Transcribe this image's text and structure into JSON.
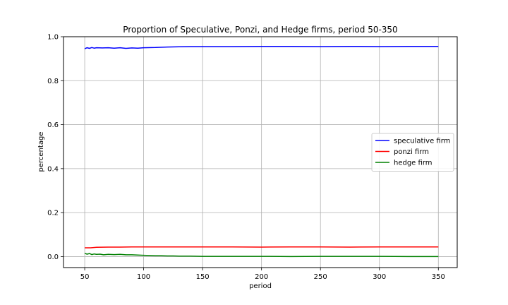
{
  "chart_data": {
    "type": "line",
    "title": "Proportion of Speculative, Ponzi, and Hedge firms, period 50-350",
    "xlabel": "period",
    "ylabel": "percentage",
    "xlim": [
      32,
      366
    ],
    "ylim": [
      -0.05,
      1.0
    ],
    "xticks": [
      50,
      100,
      150,
      200,
      250,
      300,
      350
    ],
    "yticks": [
      0.0,
      0.2,
      0.4,
      0.6,
      0.8,
      1.0
    ],
    "xtick_labels": [
      "50",
      "100",
      "150",
      "200",
      "250",
      "300",
      "350"
    ],
    "ytick_labels": [
      "0.0",
      "0.2",
      "0.4",
      "0.6",
      "0.8",
      "1.0"
    ],
    "grid": true,
    "legend_position": "center-right",
    "series": [
      {
        "name": "speculative firm",
        "color": "#0000ff",
        "x": [
          50,
          52,
          54,
          56,
          58,
          60,
          65,
          70,
          75,
          80,
          85,
          90,
          95,
          100,
          110,
          120,
          130,
          140,
          150,
          175,
          200,
          225,
          250,
          275,
          300,
          325,
          350
        ],
        "y": [
          0.945,
          0.95,
          0.947,
          0.951,
          0.948,
          0.95,
          0.949,
          0.95,
          0.948,
          0.95,
          0.947,
          0.949,
          0.948,
          0.95,
          0.951,
          0.953,
          0.954,
          0.955,
          0.955,
          0.955,
          0.956,
          0.956,
          0.955,
          0.956,
          0.955,
          0.956,
          0.956
        ]
      },
      {
        "name": "ponzi firm",
        "color": "#ff0000",
        "x": [
          50,
          55,
          60,
          70,
          80,
          90,
          100,
          125,
          150,
          175,
          200,
          225,
          250,
          275,
          300,
          325,
          350
        ],
        "y": [
          0.04,
          0.04,
          0.042,
          0.043,
          0.043,
          0.044,
          0.044,
          0.044,
          0.044,
          0.044,
          0.043,
          0.044,
          0.044,
          0.043,
          0.044,
          0.044,
          0.044
        ]
      },
      {
        "name": "hedge firm",
        "color": "#008000",
        "x": [
          50,
          52,
          54,
          56,
          58,
          60,
          63,
          66,
          70,
          75,
          80,
          85,
          90,
          95,
          100,
          105,
          110,
          115,
          120,
          125,
          130,
          140,
          150,
          175,
          200,
          225,
          250,
          275,
          300,
          325,
          350
        ],
        "y": [
          0.015,
          0.011,
          0.014,
          0.009,
          0.012,
          0.01,
          0.011,
          0.008,
          0.01,
          0.009,
          0.01,
          0.008,
          0.008,
          0.007,
          0.006,
          0.005,
          0.004,
          0.004,
          0.003,
          0.003,
          0.002,
          0.002,
          0.001,
          0.001,
          0.001,
          0.0,
          0.001,
          0.001,
          0.001,
          0.0,
          0.0
        ]
      }
    ]
  }
}
